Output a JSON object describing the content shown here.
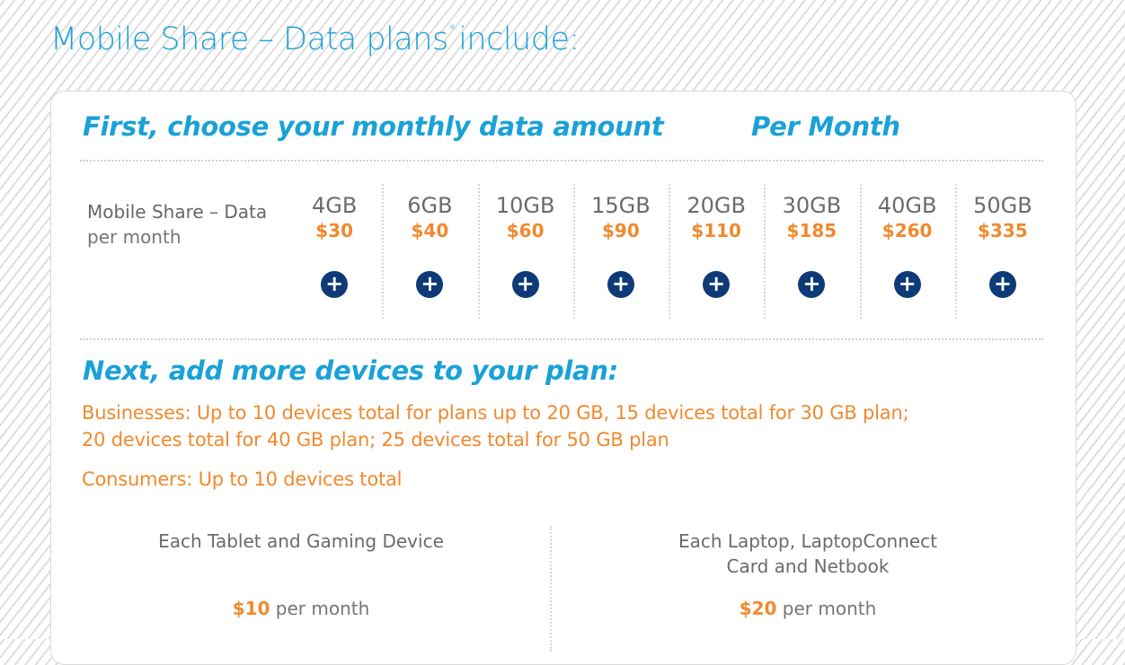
{
  "page_title": {
    "text": "Mobile Share – Data plans",
    "footnote_mark": "*",
    "suffix": "include:"
  },
  "step1": {
    "heading": "First, choose your monthly data amount",
    "column_heading": "Per Month",
    "row_label_line1": "Mobile Share – Data",
    "row_label_line2": "per month",
    "plans": [
      {
        "size": "4GB",
        "price": "$30",
        "add": "+"
      },
      {
        "size": "6GB",
        "price": "$40",
        "add": "+"
      },
      {
        "size": "10GB",
        "price": "$60",
        "add": "+"
      },
      {
        "size": "15GB",
        "price": "$90",
        "add": "+"
      },
      {
        "size": "20GB",
        "price": "$110",
        "add": "+"
      },
      {
        "size": "30GB",
        "price": "$185",
        "add": "+"
      },
      {
        "size": "40GB",
        "price": "$260",
        "add": "+"
      },
      {
        "size": "50GB",
        "price": "$335",
        "add": "+"
      }
    ]
  },
  "step2": {
    "heading": "Next, add more devices to your plan:",
    "businesses_line1": "Businesses: Up to 10 devices total for plans up to 20 GB, 15 devices total for 30 GB plan;",
    "businesses_line2": "20 devices total for 40 GB plan; 25 devices total for 50 GB plan",
    "consumers": "Consumers: Up to 10 devices total",
    "devices": [
      {
        "title_line1": "Each Tablet and Gaming Device",
        "title_line2": "",
        "price": "$10",
        "period": "per month"
      },
      {
        "title_line1": "Each Laptop, LaptopConnect",
        "title_line2": "Card and Netbook",
        "price": "$20",
        "period": "per month"
      }
    ]
  },
  "colors": {
    "accent_blue": "#1aa1d8",
    "accent_orange": "#f0892d",
    "button_navy": "#0e3a78"
  }
}
